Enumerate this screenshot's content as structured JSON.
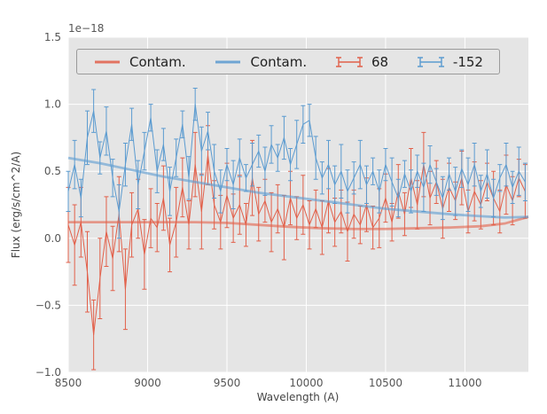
{
  "chart_data": {
    "type": "line",
    "title": "",
    "offset_text": "1e−18",
    "xlabel": "Wavelength (A)",
    "ylabel": "Flux (erg/s/cm^2/A)",
    "xlim": [
      8500,
      11400
    ],
    "ylim": [
      -1.0,
      1.5
    ],
    "xticks": [
      8500,
      9000,
      9500,
      10000,
      10500,
      11000
    ],
    "xtick_labels": [
      "8500",
      "9000",
      "9500",
      "10000",
      "10500",
      "11000"
    ],
    "yticks": [
      -1.0,
      -0.5,
      0.0,
      0.5,
      1.0,
      1.5
    ],
    "ytick_labels": [
      "−1.0",
      "−0.5",
      "0.0",
      "0.5",
      "1.0",
      "1.5"
    ],
    "grid": true,
    "legend_position": "top-inside",
    "colors": {
      "figure_bg": "#ffffff",
      "axes_bg": "#e5e5e5",
      "grid": "#ffffff",
      "tick_text": "#555555",
      "red": "#e2604a",
      "blue": "#5b9bd0"
    },
    "series": [
      {
        "name": "Contam.",
        "kind": "line",
        "color": "#e2604a",
        "line_width": 2.8,
        "opacity": 0.6,
        "x": [
          8500,
          8700,
          8900,
          9100,
          9300,
          9500,
          9700,
          9900,
          10100,
          10300,
          10500,
          10700,
          10900,
          11100,
          11250,
          11400
        ],
        "y": [
          0.12,
          0.12,
          0.12,
          0.12,
          0.12,
          0.115,
          0.1,
          0.085,
          0.075,
          0.07,
          0.07,
          0.075,
          0.08,
          0.09,
          0.11,
          0.16
        ]
      },
      {
        "name": "Contam.",
        "kind": "line",
        "color": "#5b9bd0",
        "line_width": 2.8,
        "opacity": 0.6,
        "x": [
          8500,
          8700,
          8900,
          9100,
          9300,
          9500,
          9700,
          9900,
          10100,
          10300,
          10500,
          10700,
          10900,
          11100,
          11250,
          11400
        ],
        "y": [
          0.6,
          0.56,
          0.51,
          0.46,
          0.42,
          0.38,
          0.34,
          0.31,
          0.28,
          0.25,
          0.22,
          0.2,
          0.18,
          0.165,
          0.155,
          0.16
        ]
      },
      {
        "name": "68",
        "kind": "errorbar",
        "color": "#e2604a",
        "line_width": 1,
        "x0": 8500,
        "dx": 40,
        "y": [
          0.1,
          -0.05,
          0.12,
          -0.25,
          -0.72,
          -0.3,
          0.05,
          -0.15,
          0.18,
          -0.38,
          0.1,
          0.22,
          -0.12,
          0.15,
          0.08,
          0.3,
          -0.05,
          0.12,
          0.38,
          0.1,
          0.55,
          0.2,
          0.62,
          0.25,
          0.12,
          0.32,
          0.15,
          0.25,
          0.1,
          0.45,
          0.18,
          0.28,
          0.12,
          0.22,
          0.08,
          0.3,
          0.15,
          0.25,
          0.1,
          0.22,
          0.08,
          0.28,
          0.12,
          0.2,
          0.05,
          0.18,
          0.1,
          0.25,
          0.08,
          0.15,
          0.3,
          0.12,
          0.35,
          0.18,
          0.45,
          0.25,
          0.55,
          0.3,
          0.42,
          0.22,
          0.38,
          0.28,
          0.45,
          0.2,
          0.35,
          0.25,
          0.42,
          0.3,
          0.2,
          0.4,
          0.28,
          0.45,
          0.35
        ],
        "yerr": [
          0.28,
          0.3,
          0.26,
          0.3,
          0.26,
          0.3,
          0.26,
          0.24,
          0.28,
          0.3,
          0.24,
          0.22,
          0.26,
          0.22,
          0.18,
          0.24,
          0.2,
          0.26,
          0.22,
          0.18,
          0.24,
          0.28,
          0.22,
          0.18,
          0.2,
          0.24,
          0.18,
          0.22,
          0.16,
          0.28,
          0.2,
          0.16,
          0.22,
          0.18,
          0.24,
          0.2,
          0.16,
          0.22,
          0.18,
          0.14,
          0.2,
          0.24,
          0.18,
          0.16,
          0.22,
          0.18,
          0.14,
          0.2,
          0.16,
          0.22,
          0.18,
          0.14,
          0.2,
          0.16,
          0.22,
          0.18,
          0.24,
          0.2,
          0.16,
          0.22,
          0.18,
          0.14,
          0.2,
          0.16,
          0.22,
          0.18,
          0.14,
          0.2,
          0.16,
          0.22,
          0.18,
          0.14,
          0.2
        ]
      },
      {
        "name": "-152",
        "kind": "errorbar",
        "color": "#5b9bd0",
        "line_width": 1,
        "x0": 8500,
        "dx": 40,
        "y": [
          0.35,
          0.55,
          0.3,
          0.75,
          0.95,
          0.6,
          0.8,
          0.45,
          0.2,
          0.55,
          0.85,
          0.4,
          0.65,
          0.9,
          0.5,
          0.7,
          0.35,
          0.6,
          0.85,
          0.45,
          1.0,
          0.65,
          0.8,
          0.5,
          0.35,
          0.55,
          0.4,
          0.6,
          0.45,
          0.55,
          0.65,
          0.5,
          0.7,
          0.6,
          0.75,
          0.55,
          0.7,
          0.85,
          0.88,
          0.6,
          0.45,
          0.55,
          0.4,
          0.5,
          0.35,
          0.45,
          0.55,
          0.4,
          0.5,
          0.35,
          0.55,
          0.42,
          0.3,
          0.48,
          0.35,
          0.5,
          0.38,
          0.55,
          0.42,
          0.3,
          0.48,
          0.35,
          0.52,
          0.4,
          0.55,
          0.35,
          0.48,
          0.3,
          0.45,
          0.55,
          0.38,
          0.5,
          0.42
        ],
        "yerr": [
          0.15,
          0.18,
          0.14,
          0.2,
          0.16,
          0.12,
          0.18,
          0.14,
          0.2,
          0.16,
          0.12,
          0.18,
          0.14,
          0.1,
          0.16,
          0.12,
          0.18,
          0.14,
          0.1,
          0.16,
          0.12,
          0.18,
          0.14,
          0.2,
          0.16,
          0.12,
          0.18,
          0.14,
          0.1,
          0.16,
          0.12,
          0.18,
          0.14,
          0.1,
          0.16,
          0.12,
          0.18,
          0.14,
          0.12,
          0.16,
          0.12,
          0.18,
          0.14,
          0.2,
          0.16,
          0.12,
          0.18,
          0.14,
          0.1,
          0.16,
          0.12,
          0.18,
          0.14,
          0.1,
          0.16,
          0.12,
          0.18,
          0.14,
          0.1,
          0.16,
          0.12,
          0.18,
          0.14,
          0.2,
          0.16,
          0.12,
          0.18,
          0.14,
          0.1,
          0.16,
          0.12,
          0.18,
          0.14
        ]
      }
    ]
  }
}
